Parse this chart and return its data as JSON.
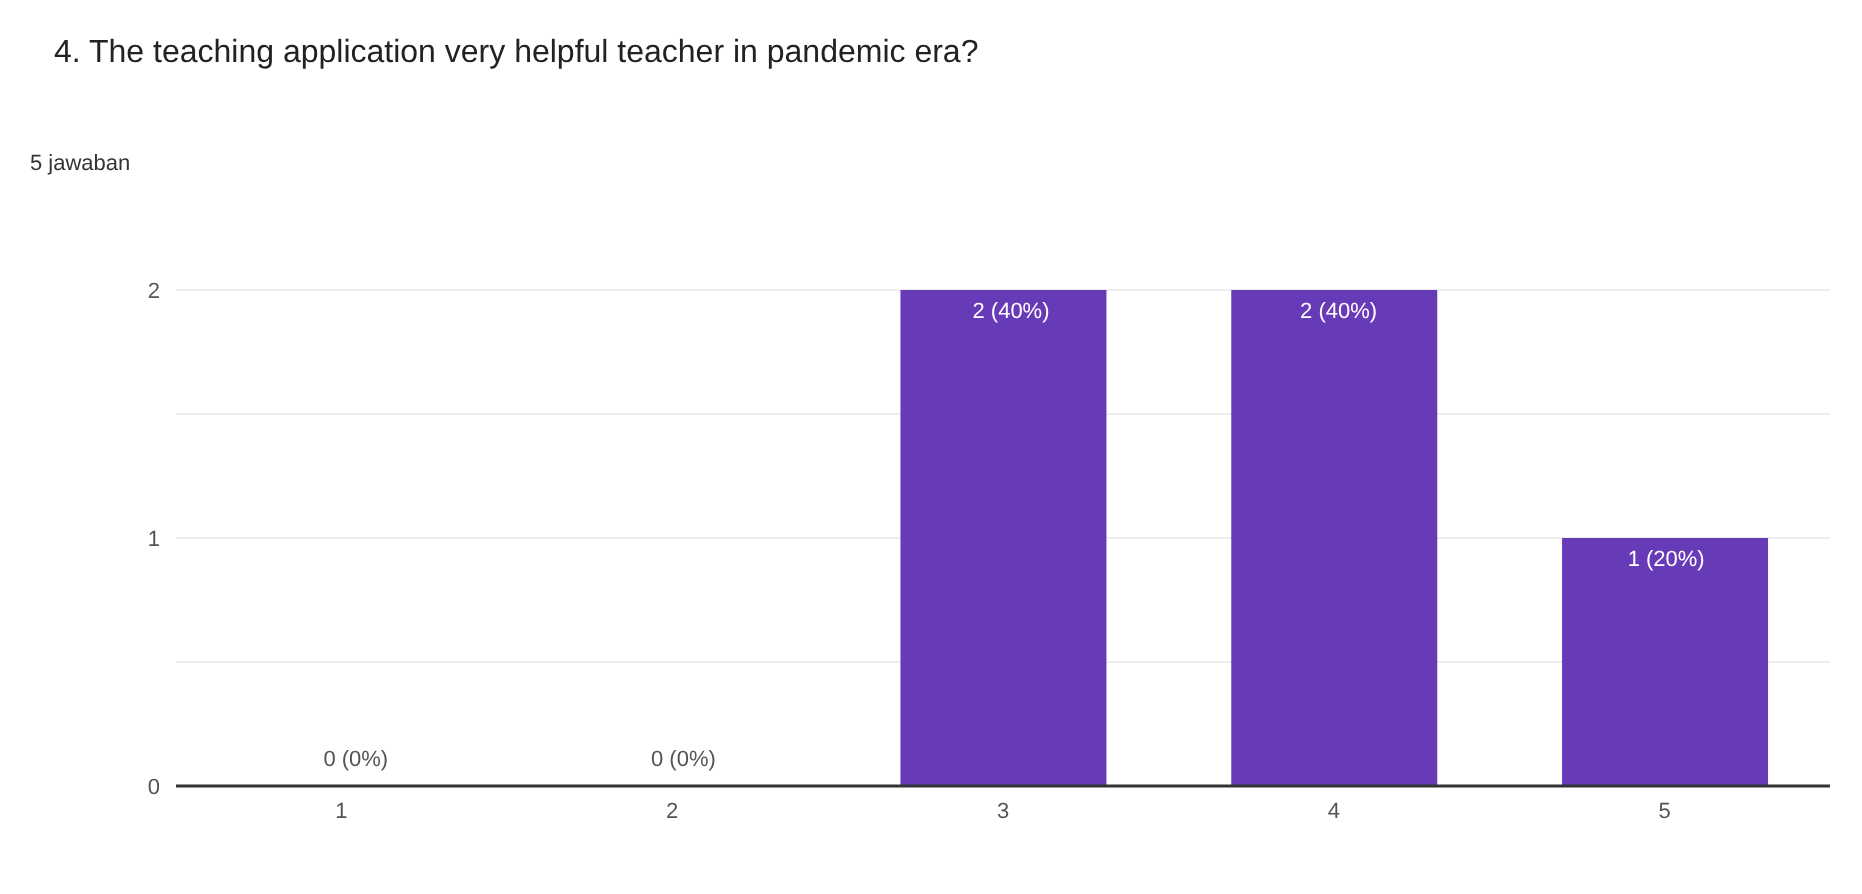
{
  "chart_data": {
    "type": "bar",
    "title": "4. The teaching application very helpful teacher in pandemic era?",
    "subtitle": "5 jawaban",
    "categories": [
      "1",
      "2",
      "3",
      "4",
      "5"
    ],
    "values": [
      0,
      0,
      2,
      2,
      1
    ],
    "value_labels": [
      "0 (0%)",
      "0 (0%)",
      "2 (40%)",
      "2 (40%)",
      "1 (20%)"
    ],
    "color": "#673ab7",
    "ylim": [
      0,
      2
    ],
    "yticks": [
      0,
      {
        "value": 0.5,
        "label": null
      },
      1,
      {
        "value": 1.5,
        "label": null
      },
      2
    ],
    "grid": "y"
  }
}
